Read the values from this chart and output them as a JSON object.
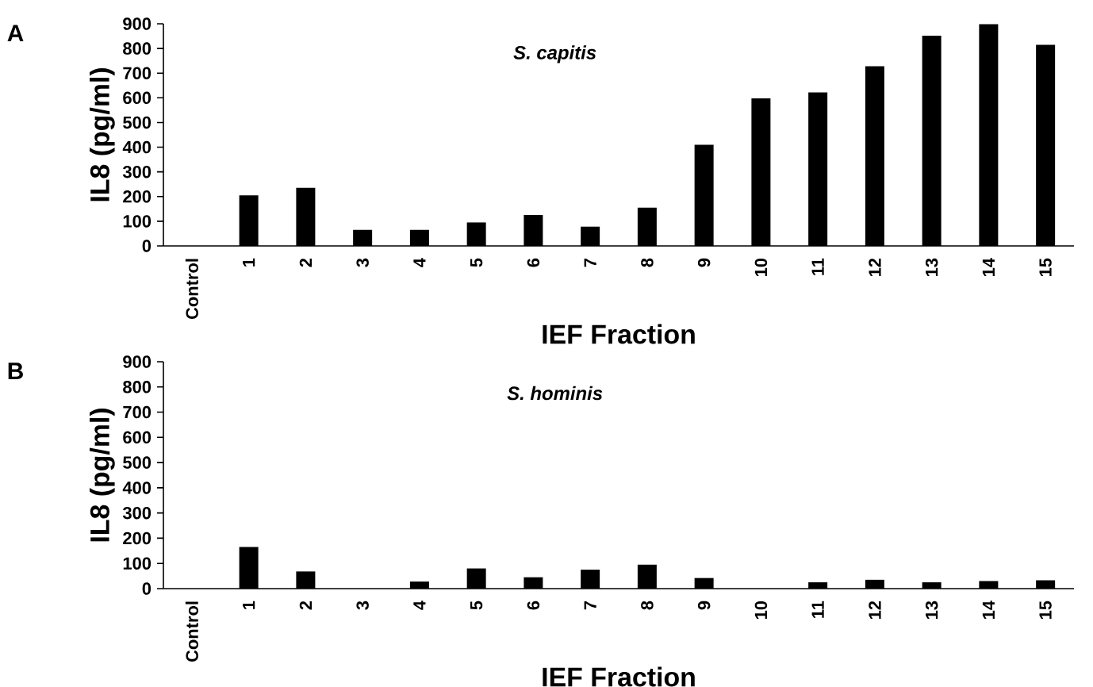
{
  "chart_data": [
    {
      "type": "bar",
      "title": "S. capitis",
      "xlabel": "IEF Fraction",
      "ylabel": "IL8 (pg/ml)",
      "annotations": [
        "A"
      ],
      "categories": [
        "Control",
        "1",
        "2",
        "3",
        "4",
        "5",
        "6",
        "7",
        "8",
        "9",
        "10",
        "11",
        "12",
        "13",
        "14",
        "15"
      ],
      "values": [
        0,
        205,
        235,
        65,
        65,
        95,
        125,
        78,
        155,
        410,
        598,
        622,
        728,
        852,
        898,
        815
      ],
      "color": "#000000",
      "ylim": [
        0,
        900
      ],
      "yticks": [
        0,
        100,
        200,
        300,
        400,
        500,
        600,
        700,
        800,
        900
      ]
    },
    {
      "type": "bar",
      "title": "S. hominis",
      "xlabel": "IEF Fraction",
      "ylabel": "IL8 (pg/ml)",
      "annotations": [
        "B"
      ],
      "categories": [
        "Control",
        "1",
        "2",
        "3",
        "4",
        "5",
        "6",
        "7",
        "8",
        "9",
        "10",
        "11",
        "12",
        "13",
        "14",
        "15"
      ],
      "values": [
        0,
        165,
        68,
        0,
        28,
        80,
        45,
        75,
        95,
        42,
        0,
        25,
        35,
        25,
        30,
        33
      ],
      "color": "#000000",
      "ylim": [
        0,
        900
      ],
      "yticks": [
        0,
        100,
        200,
        300,
        400,
        500,
        600,
        700,
        800,
        900
      ]
    }
  ]
}
